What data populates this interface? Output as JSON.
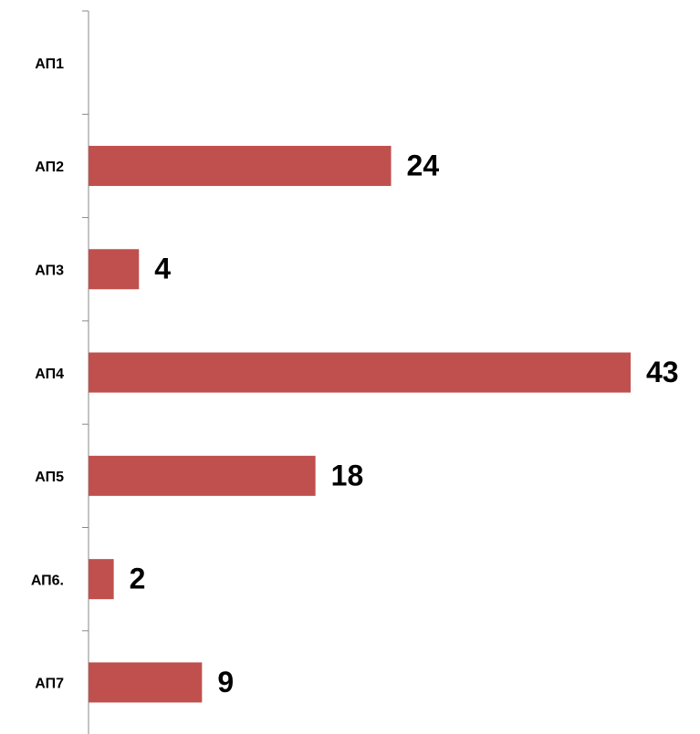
{
  "chart_data": {
    "type": "bar",
    "orientation": "horizontal",
    "categories": [
      "АП1",
      "АП2",
      "АП3",
      "АП4",
      "АП5",
      "АП6.",
      "АП7"
    ],
    "values": [
      null,
      24,
      4,
      43,
      18,
      2,
      9
    ],
    "color": "#c0504d"
  }
}
